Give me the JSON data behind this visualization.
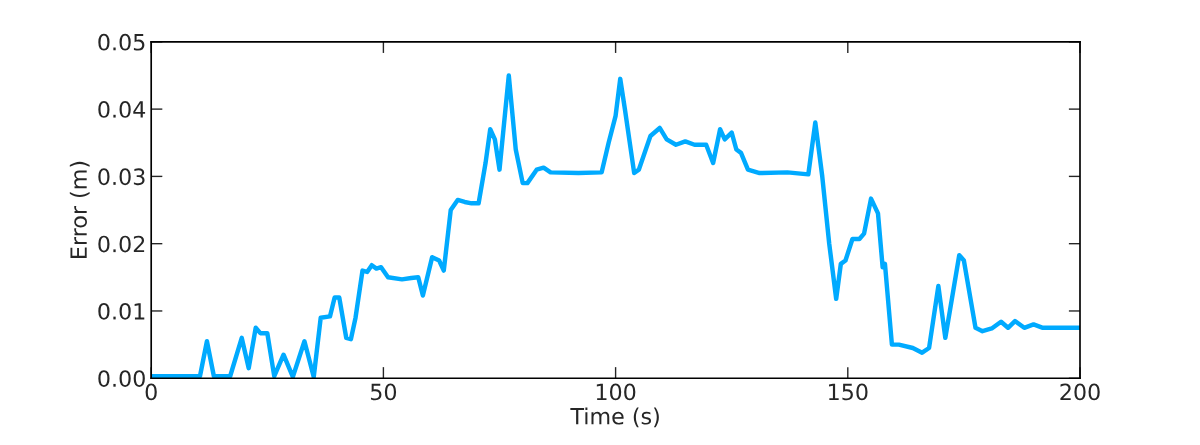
{
  "chart_data": {
    "type": "line",
    "xlabel": "Time (s)",
    "ylabel": "Error (m)",
    "xlim": [
      0,
      200
    ],
    "ylim": [
      0,
      0.05
    ],
    "xticks": [
      0,
      50,
      100,
      150,
      200
    ],
    "yticks": [
      {
        "value": 0,
        "label": "0.00"
      },
      {
        "value": 0.01,
        "label": "0.01"
      },
      {
        "value": 0.02,
        "label": "0.02"
      },
      {
        "value": 0.03,
        "label": "0.03"
      },
      {
        "value": 0.04,
        "label": "0.04"
      },
      {
        "value": 0.05,
        "label": "0.05"
      }
    ],
    "grid": false,
    "marker": "none",
    "line_style": "solid",
    "series": [
      {
        "color": "#00aaff",
        "x": [
          0,
          9,
          10.5,
          12,
          13.5,
          17,
          19.5,
          21,
          22.5,
          23.5,
          25,
          26.5,
          28.5,
          30.5,
          33,
          35,
          36.5,
          38.5,
          39.5,
          40.5,
          42,
          43,
          44,
          45.5,
          46.5,
          47.5,
          48.5,
          49.5,
          51,
          54,
          56,
          57.5,
          58.5,
          60.5,
          62,
          63,
          64.5,
          66,
          67.5,
          69,
          70.5,
          72,
          73,
          74,
          75,
          77,
          78.5,
          80,
          81,
          83,
          84.5,
          86,
          92,
          97,
          98.5,
          100,
          101,
          102,
          104,
          105,
          106.5,
          107.5,
          109.5,
          111,
          113,
          115,
          117,
          119.5,
          121,
          122.5,
          123.5,
          125,
          126,
          127,
          128.5,
          131,
          137,
          141.5,
          143,
          144.5,
          146,
          147.5,
          148.5,
          149.5,
          151,
          152.5,
          153.5,
          155,
          156.5,
          157.5,
          158,
          159.5,
          161,
          164,
          166,
          167.5,
          169.5,
          171,
          174,
          175,
          177.5,
          179,
          181,
          183,
          184.5,
          186,
          188,
          190,
          192,
          200
        ],
        "values": [
          0.0003,
          0.0003,
          0.0003,
          0.0055,
          0.0003,
          0.0003,
          0.006,
          0.0015,
          0.0075,
          0.0067,
          0.0067,
          0.0003,
          0.0035,
          0.0002,
          0.0055,
          0.0002,
          0.009,
          0.0092,
          0.012,
          0.012,
          0.006,
          0.0058,
          0.009,
          0.016,
          0.0158,
          0.0168,
          0.0163,
          0.0165,
          0.015,
          0.0147,
          0.0149,
          0.015,
          0.0123,
          0.018,
          0.0175,
          0.016,
          0.025,
          0.0265,
          0.0262,
          0.026,
          0.026,
          0.032,
          0.037,
          0.0355,
          0.031,
          0.045,
          0.034,
          0.029,
          0.029,
          0.031,
          0.0313,
          0.0306,
          0.0305,
          0.0306,
          0.035,
          0.039,
          0.0445,
          0.04,
          0.0305,
          0.031,
          0.034,
          0.036,
          0.0372,
          0.0355,
          0.0347,
          0.0352,
          0.0347,
          0.0347,
          0.032,
          0.037,
          0.0355,
          0.0365,
          0.034,
          0.0335,
          0.031,
          0.0305,
          0.0306,
          0.0303,
          0.038,
          0.03,
          0.02,
          0.0118,
          0.017,
          0.0175,
          0.0207,
          0.0207,
          0.0215,
          0.0267,
          0.0245,
          0.0165,
          0.017,
          0.005,
          0.005,
          0.0045,
          0.0038,
          0.0045,
          0.0137,
          0.006,
          0.0183,
          0.0175,
          0.0075,
          0.007,
          0.0074,
          0.0084,
          0.0075,
          0.0085,
          0.0075,
          0.008,
          0.0075,
          0.0075
        ]
      }
    ]
  }
}
